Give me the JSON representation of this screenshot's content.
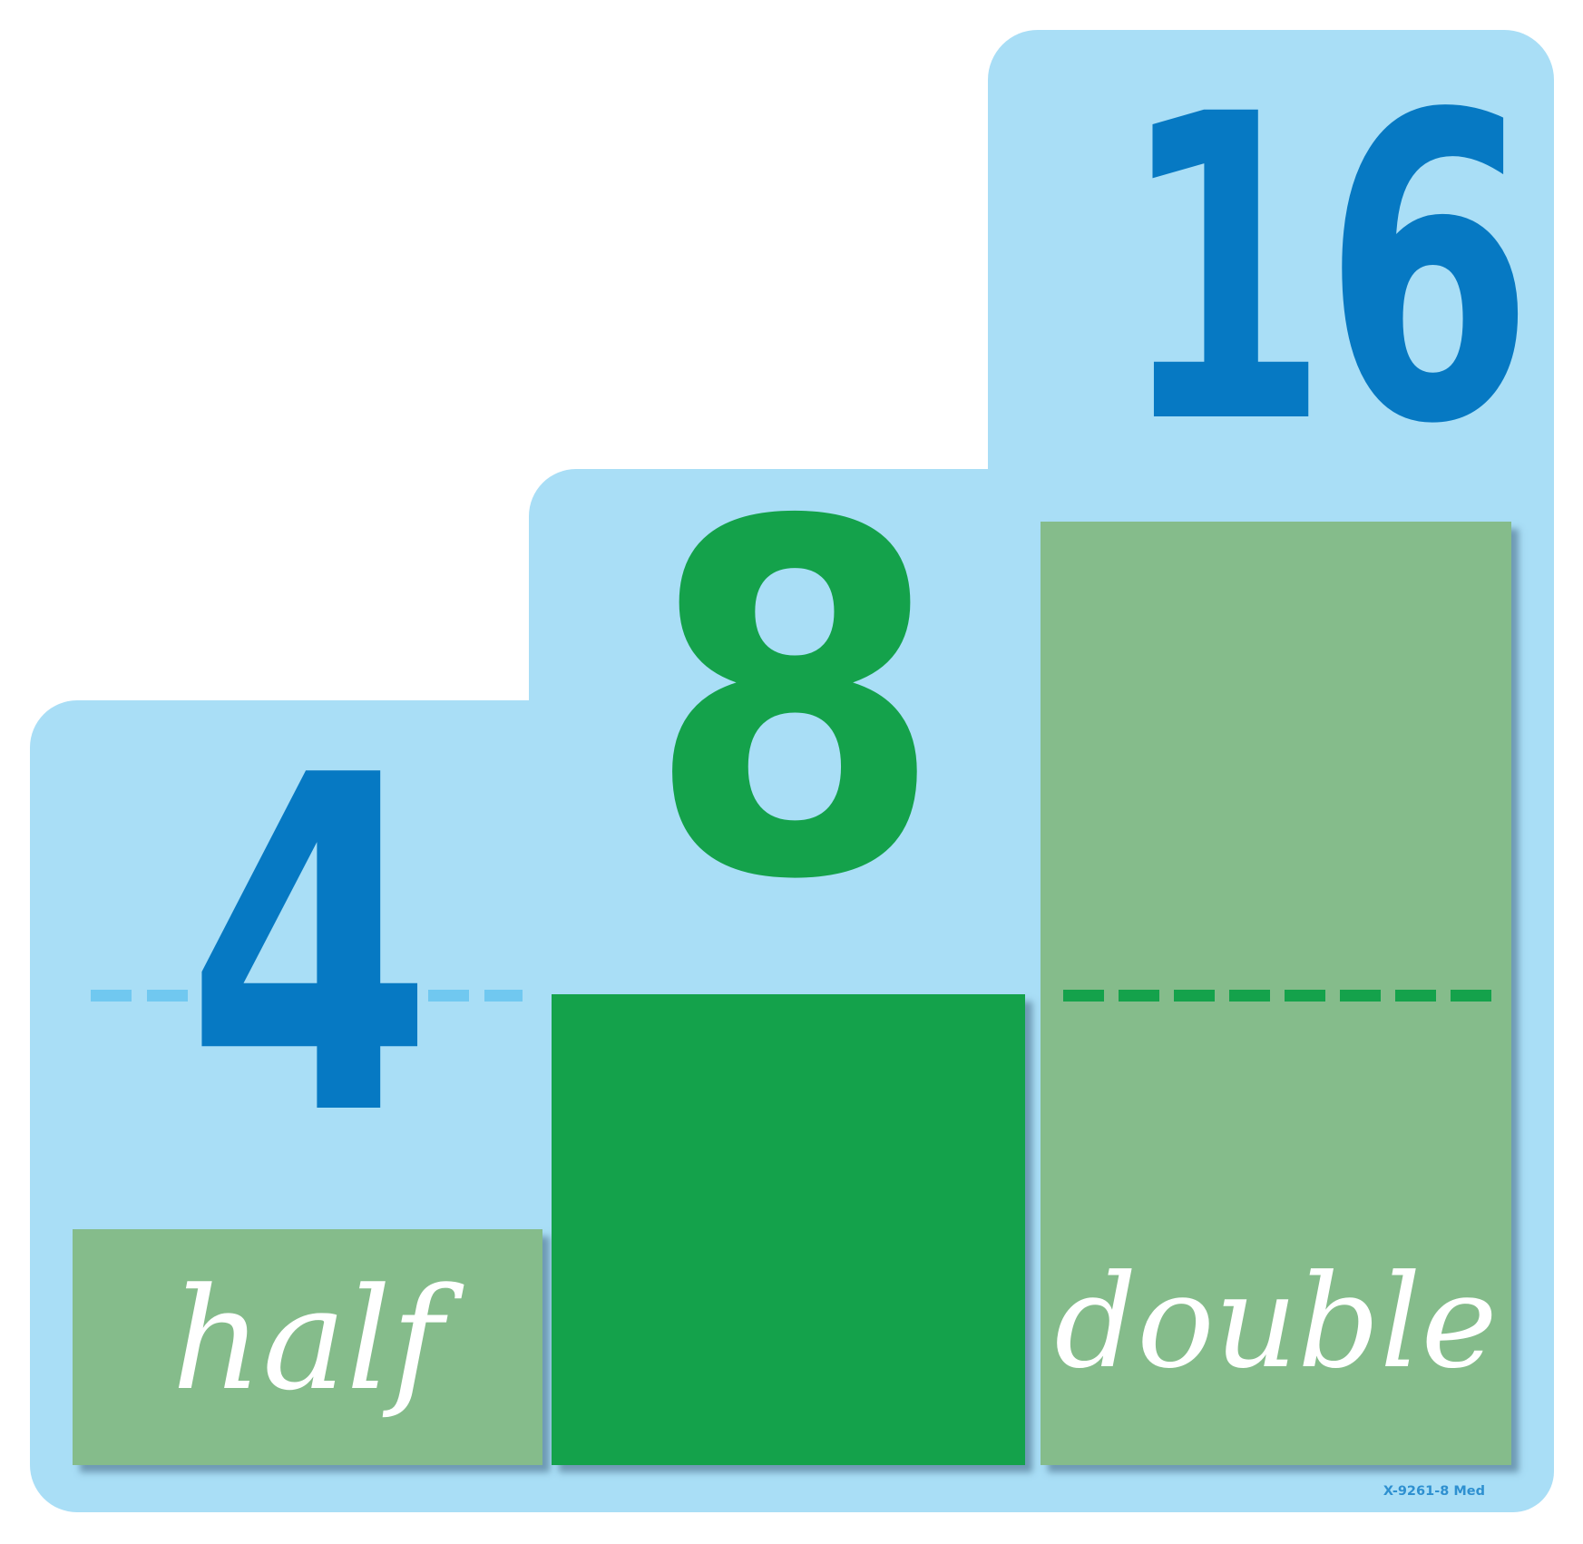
{
  "poster": {
    "left_step": {
      "number": "4",
      "label": "half"
    },
    "middle_step": {
      "number": "8"
    },
    "right_step": {
      "number": "16",
      "label": "double"
    },
    "footer_code": "X-9261-8 Med",
    "colors": {
      "panel_blue": "#a9def6",
      "number_blue": "#0679c3",
      "dash_blue": "#70c8f0",
      "green": "#14a24b",
      "sage": "#85bc8b",
      "text_white": "#ffffff",
      "code_blue": "#2e90d0"
    }
  }
}
